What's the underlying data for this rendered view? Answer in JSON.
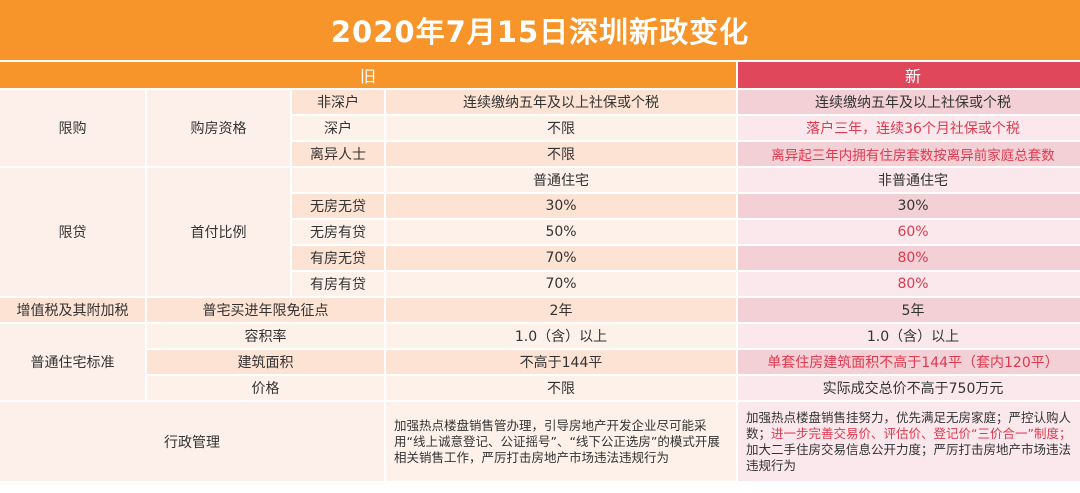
{
  "title": "2020年7月15日深圳新政变化",
  "header": {
    "old": "旧",
    "new": "新"
  },
  "colors": {
    "orange": "#f7952a",
    "red": "#e0475a",
    "red_text": "#e0394f"
  },
  "xiangou": {
    "label": "限购",
    "sub": "购房资格",
    "rows": [
      {
        "item": "非深户",
        "old": "连续缴纳五年及以上社保或个税",
        "new": "连续缴纳五年及以上社保或个税"
      },
      {
        "item": "深户",
        "old": "不限",
        "new": "落户三年，连续36个月社保或个税"
      },
      {
        "item": "离异人士",
        "old": "不限",
        "new": "离异起三年内拥有住房套数按离异前家庭总套数"
      }
    ]
  },
  "xiandai": {
    "label": "限贷",
    "sub": "首付比例",
    "col_old": "普通住宅",
    "col_new": "非普通住宅",
    "rows": [
      {
        "item": "无房无贷",
        "old": "30%",
        "new": "30%"
      },
      {
        "item": "无房有贷",
        "old": "50%",
        "new": "60%"
      },
      {
        "item": "有房无贷",
        "old": "70%",
        "new": "80%"
      },
      {
        "item": "有房有贷",
        "old": "70%",
        "new": "80%"
      }
    ]
  },
  "tax": {
    "label": "增值税及其附加税",
    "sub": "普宅买进年限免征点",
    "old": "2年",
    "new": "5年"
  },
  "standard": {
    "label": "普通住宅标准",
    "rows": [
      {
        "item": "容积率",
        "old": "1.0（含）以上",
        "new": "1.0（含）以上"
      },
      {
        "item": "建筑面积",
        "old": "不高于144平",
        "new": "单套住房建筑面积不高于144平（套内120平）"
      },
      {
        "item": "价格",
        "old": "不限",
        "new": "实际成交总价不高于750万元"
      }
    ]
  },
  "admin": {
    "label": "行政管理",
    "old": "加强热点楼盘销售管办理，引导房地产开发企业尽可能采用“线上诚意登记、公证摇号”、“线下公正选房”的模式开展相关销售工作，严厉打击房地产市场违法违规行为",
    "new_1": "加强热点楼盘销售挂努力，优先满足无房家庭；严控认购人数；",
    "new_2": "进一步完善交易价、评估价、登记价“三价合一”制度；",
    "new_3": "加大二手住房交易信息公开力度；严厉打击房地产市场违法违规行为"
  }
}
